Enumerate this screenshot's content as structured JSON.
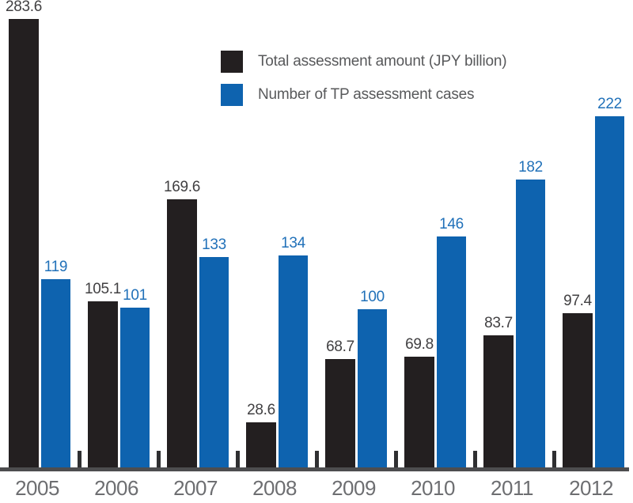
{
  "chart_data": {
    "type": "bar",
    "title": "",
    "xlabel": "",
    "ylabel": "",
    "categories": [
      "2005",
      "2006",
      "2007",
      "2008",
      "2009",
      "2010",
      "2011",
      "2012"
    ],
    "series": [
      {
        "name": "Total assessment amount (JPY billion)",
        "key": "total-assessment-amount",
        "color": "#231F20",
        "label_color": "#414042",
        "decimals": 1,
        "values": [
          283.6,
          105.1,
          169.6,
          28.6,
          68.7,
          69.8,
          83.7,
          97.4
        ]
      },
      {
        "name": "Number of TP assessment cases",
        "key": "tp-assessment-cases",
        "color": "#0E63AF",
        "label_color": "#2171B9",
        "decimals": 0,
        "values": [
          119,
          101,
          133,
          134,
          100,
          146,
          182,
          222
        ]
      }
    ],
    "ylim": [
      0,
      295
    ],
    "grid": false,
    "data_labels": true,
    "legend_position": "top-center",
    "axis": {
      "line_color": "#4D4D4F",
      "tick_color": "#2F2F31",
      "category_label_color": "#6D6E71"
    }
  }
}
